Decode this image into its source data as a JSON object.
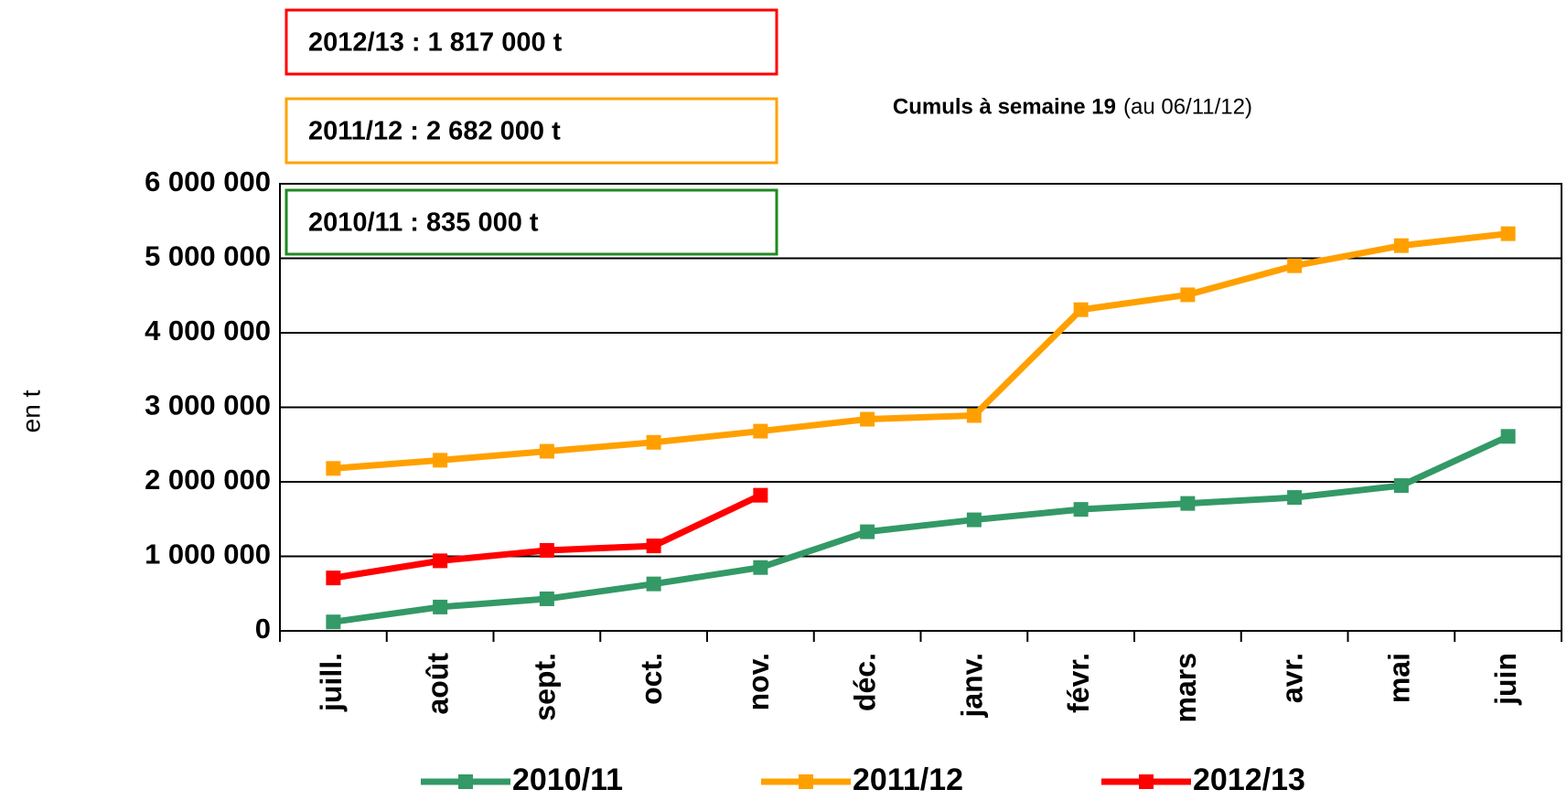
{
  "chart_data": {
    "type": "line",
    "subtitle": "Cumuls à semaine 19",
    "subtitle_note": "(au 06/11/12)",
    "y_label": "en t",
    "annotations": [
      {
        "text": "2012/13 : 1 817 000 t",
        "color": "#ff0000"
      },
      {
        "text": "2011/12 : 2 682 000 t",
        "color": "#ffa200"
      },
      {
        "text": "2010/11 : 835 000 t",
        "color": "#1f8a1f"
      }
    ],
    "categories": [
      "juill.",
      "août",
      "sept.",
      "oct.",
      "nov.",
      "déc.",
      "janv.",
      "févr.",
      "mars",
      "avr.",
      "mai",
      "juin"
    ],
    "series": [
      {
        "name": "2010/11",
        "color": "#339966",
        "values": [
          120000,
          320000,
          430000,
          630000,
          850000,
          1330000,
          1490000,
          1630000,
          1710000,
          1790000,
          1950000,
          2610000
        ]
      },
      {
        "name": "2011/12",
        "color": "#ffa000",
        "values": [
          2180000,
          2290000,
          2410000,
          2530000,
          2680000,
          2840000,
          2890000,
          4310000,
          4510000,
          4900000,
          5170000,
          5330000
        ]
      },
      {
        "name": "2012/13",
        "color": "#ff0000",
        "values": [
          710000,
          940000,
          1080000,
          1140000,
          1820000,
          null,
          null,
          null,
          null,
          null,
          null,
          null
        ]
      }
    ],
    "ylim": [
      0,
      6000000
    ],
    "yticks": [
      0,
      {
        "value": 1000000,
        "label": "1 000 000"
      },
      {
        "value": 2000000,
        "label": "2 000 000"
      },
      {
        "value": 3000000,
        "label": "3 000 000"
      },
      {
        "value": 4000000,
        "label": "4 000 000"
      },
      {
        "value": 5000000,
        "label": "5 000 000"
      },
      {
        "value": 6000000,
        "label": "6 000 000"
      }
    ],
    "grid": true
  }
}
